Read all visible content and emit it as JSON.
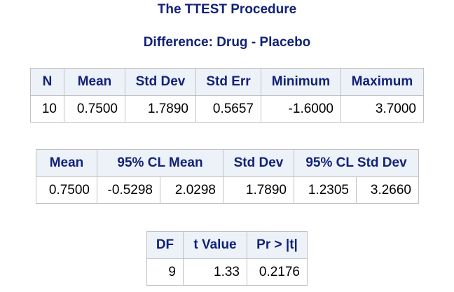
{
  "titles": {
    "procedure": "The TTEST Procedure",
    "difference": "Difference: Drug - Placebo"
  },
  "summary_table": {
    "headers": [
      "N",
      "Mean",
      "Std Dev",
      "Std Err",
      "Minimum",
      "Maximum"
    ],
    "row": [
      "10",
      "0.7500",
      "1.7890",
      "0.5657",
      "-1.6000",
      "3.7000"
    ]
  },
  "cl_table": {
    "headers": {
      "mean": "Mean",
      "cl_mean": "95% CL Mean",
      "std_dev": "Std Dev",
      "cl_std_dev": "95% CL Std Dev"
    },
    "row": [
      "0.7500",
      "-0.5298",
      "2.0298",
      "1.7890",
      "1.2305",
      "3.2660"
    ]
  },
  "ttest_table": {
    "headers": [
      "DF",
      "t Value",
      "Pr > |t|"
    ],
    "row": [
      "9",
      "1.33",
      "0.2176"
    ]
  },
  "colors": {
    "header_text": "#112277",
    "header_bg": "#edf2f9",
    "border": "#c1c1c1"
  }
}
